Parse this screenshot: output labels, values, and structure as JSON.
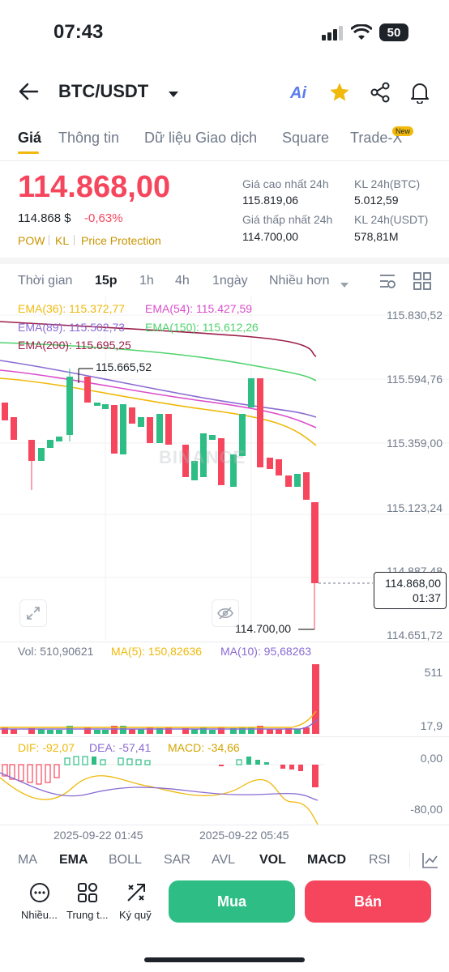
{
  "status": {
    "time": "07:43",
    "battery": "50"
  },
  "header": {
    "pair": "BTC/USDT",
    "ai_label": "Ai"
  },
  "tabs": [
    {
      "label": "Giá"
    },
    {
      "label": "Thông tin"
    },
    {
      "label": "Dữ liệu Giao dịch"
    },
    {
      "label": "Square"
    },
    {
      "label": "Trade-X",
      "badge": "New"
    }
  ],
  "price": {
    "last": "114.868,00",
    "fiat": "114.868 $",
    "change": "-0,63%",
    "tags": [
      "POW",
      "KL",
      "Price Protection"
    ]
  },
  "stats": {
    "high_label": "Giá cao nhất 24h",
    "high": "115.819,06",
    "vol_btc_label": "KL 24h(BTC)",
    "vol_btc": "5.012,59",
    "low_label": "Giá thấp nhất 24h",
    "low": "114.700,00",
    "vol_usdt_label": "KL 24h(USDT)",
    "vol_usdt": "578,81M"
  },
  "timeframes": {
    "time_label": "Thời gian",
    "items": [
      "15p",
      "1h",
      "4h",
      "1ngày"
    ],
    "more": "Nhiều hơn"
  },
  "ema": {
    "ema36": "EMA(36): 115.372,77",
    "ema54": "EMA(54): 115.427,59",
    "ema89": "EMA(89): 115.502,73",
    "ema150": "EMA(150): 115.612,26",
    "ema200": "EMA(200): 115.695,25"
  },
  "colors": {
    "up": "#2ebd85",
    "down": "#f6465d",
    "ema36": "#f0b90b",
    "ema54": "#d94ecb",
    "ema89": "#8a6ad3",
    "ema150": "#4dd36b",
    "ema200": "#9c1f4a"
  },
  "axis": [
    "115.830,52",
    "115.594,76",
    "115.359,00",
    "115.123,24",
    "114.887,48",
    "114.651,72"
  ],
  "annotations": {
    "high_marker": "115.665,52",
    "low_marker": "114.700,00",
    "current_price": "114.868,00",
    "countdown": "01:37",
    "watermark": "BINANCE"
  },
  "volume": {
    "vol": "Vol: 510,90621",
    "ma5": "MA(5): 150,82636",
    "ma10": "MA(10): 95,68263",
    "axis_top": "511",
    "axis_bottom": "17,9"
  },
  "macd": {
    "dif": "DIF: -92,07",
    "dea": "DEA: -57,41",
    "macd": "MACD: -34,66",
    "axis_top": "0,00",
    "axis_bottom": "-80,00"
  },
  "time_axis": [
    "2025-09-22 01:45",
    "2025-09-22 05:45"
  ],
  "indicator_tabs": [
    {
      "label": "MA"
    },
    {
      "label": "EMA",
      "active": true
    },
    {
      "label": "BOLL"
    },
    {
      "label": "SAR"
    },
    {
      "label": "AVL"
    },
    {
      "label": "VOL",
      "active": true
    },
    {
      "label": "MACD",
      "active": true
    },
    {
      "label": "RSI"
    }
  ],
  "bottom": {
    "more_label": "Nhiều...",
    "center_label": "Trung t...",
    "margin_label": "Ký quỹ",
    "buy": "Mua",
    "sell": "Bán"
  }
}
